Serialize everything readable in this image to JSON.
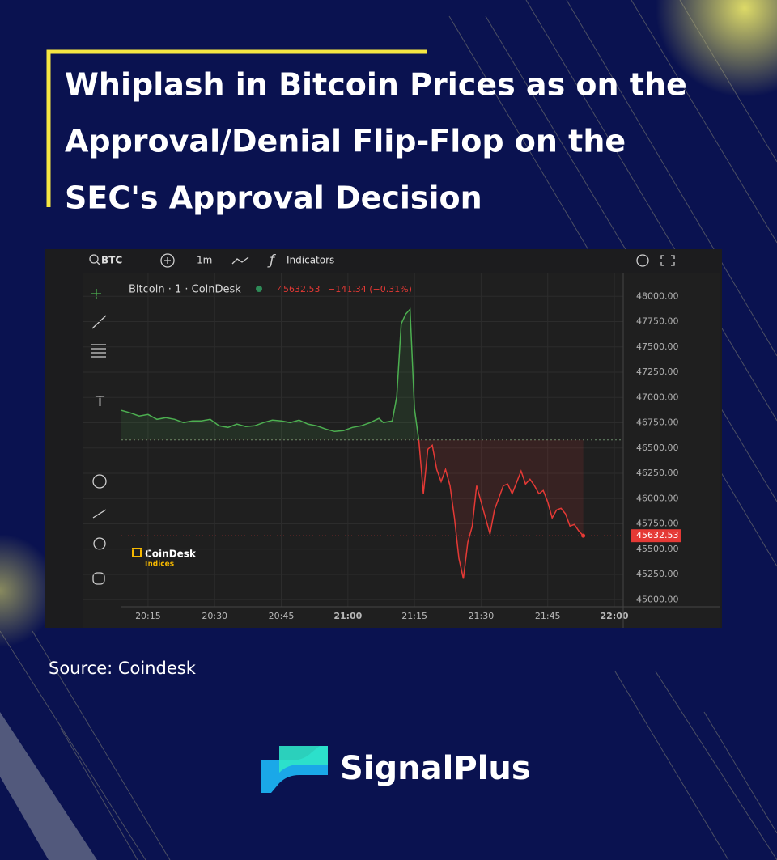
{
  "header": {
    "title_lines": [
      "Whiplash in Bitcoin Prices as on the",
      "Approval/Denial Flip-Flop on the",
      "SEC's Approval Decision"
    ]
  },
  "toolbar": {
    "symbol": "BTC",
    "interval": "1m",
    "indicators": "Indicators"
  },
  "chart_data": {
    "type": "line",
    "legend": {
      "name": "Bitcoin · 1 · CoinDesk",
      "price": "45632.53",
      "change": "−141.34 (−0.31%)"
    },
    "watermark": [
      "CoinDesk",
      "Indices"
    ],
    "x": [
      "20:09",
      "20:11",
      "20:13",
      "20:15",
      "20:17",
      "20:19",
      "20:21",
      "20:23",
      "20:25",
      "20:27",
      "20:29",
      "20:31",
      "20:33",
      "20:35",
      "20:37",
      "20:39",
      "20:41",
      "20:43",
      "20:45",
      "20:47",
      "20:49",
      "20:51",
      "20:53",
      "20:55",
      "20:57",
      "20:59",
      "21:01",
      "21:03",
      "21:05",
      "21:07",
      "21:08",
      "21:09",
      "21:10",
      "21:11",
      "21:12",
      "21:13",
      "21:14",
      "21:15",
      "21:16",
      "21:17",
      "21:18",
      "21:19",
      "21:20",
      "21:21",
      "21:22",
      "21:23",
      "21:24",
      "21:25",
      "21:26",
      "21:27",
      "21:28",
      "21:29",
      "21:30",
      "21:31",
      "21:32",
      "21:33",
      "21:34",
      "21:35",
      "21:36",
      "21:37",
      "21:38",
      "21:39",
      "21:40",
      "21:41",
      "21:42",
      "21:43",
      "21:44",
      "21:45",
      "21:46",
      "21:47",
      "21:48",
      "21:49",
      "21:50",
      "21:51",
      "21:52",
      "21:53"
    ],
    "series": [
      {
        "color_up": "#4caf50",
        "color_down": "#e53935",
        "values": [
          46872,
          46848,
          46816,
          46832,
          46784,
          46800,
          46784,
          46752,
          46768,
          46768,
          46784,
          46720,
          46704,
          46736,
          46712,
          46720,
          46752,
          46776,
          46768,
          46752,
          46776,
          46736,
          46720,
          46688,
          46664,
          46672,
          46704,
          46720,
          46752,
          46792,
          46752,
          46760,
          46768,
          47008,
          47728,
          47824,
          47872,
          46888,
          46568,
          46048,
          46488,
          46528,
          46288,
          46168,
          46288,
          46128,
          45808,
          45408,
          45208,
          45568,
          45728,
          46128,
          45968,
          45808,
          45648,
          45888,
          46008,
          46128,
          46144,
          46048,
          46160,
          46272,
          46144,
          46192,
          46128,
          46048,
          46080,
          45968,
          45808,
          45888,
          45904,
          45848,
          45728,
          45744,
          45680,
          45632.53
        ]
      }
    ],
    "baseline": 46580,
    "xlim": [
      "20:09",
      "22:02"
    ],
    "xticks": [
      "20:15",
      "20:30",
      "20:45",
      "21:00",
      "21:15",
      "21:30",
      "21:45",
      "22:00"
    ],
    "ylim": [
      44930,
      48170
    ],
    "yticks": [
      {
        "value": 45000,
        "label": "45000.00"
      },
      {
        "value": 45250,
        "label": "45250.00"
      },
      {
        "value": 45500,
        "label": "45500.00"
      },
      {
        "value": 45750,
        "label": "45750.00"
      },
      {
        "value": 46000,
        "label": "46000.00"
      },
      {
        "value": 46250,
        "label": "46250.00"
      },
      {
        "value": 46500,
        "label": "46500.00"
      },
      {
        "value": 46750,
        "label": "46750.00"
      },
      {
        "value": 47000,
        "label": "47000.00"
      },
      {
        "value": 47250,
        "label": "47250.00"
      },
      {
        "value": 47500,
        "label": "47500.00"
      },
      {
        "value": 47750,
        "label": "47750.00"
      },
      {
        "value": 48000,
        "label": "48000.00"
      }
    ],
    "grid": true
  },
  "source": "Source: Coindesk",
  "brand": "SignalPlus"
}
